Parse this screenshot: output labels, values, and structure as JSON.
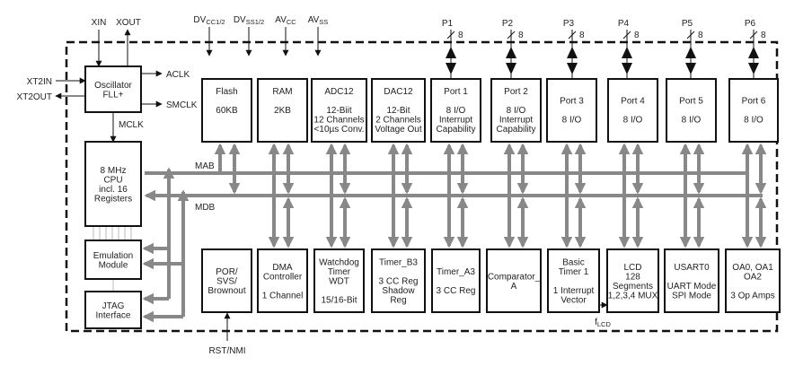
{
  "diagram": {
    "colors": {
      "bus": "#888888",
      "block_border": "#111111",
      "signal": "#111111"
    },
    "external_signals": {
      "xin": "XIN",
      "xout": "XOUT",
      "xt2in": "XT2IN",
      "xt2out": "XT2OUT",
      "aclk": "ACLK",
      "smclk": "SMCLK",
      "mclk": "MCLK",
      "rst_nmi": "RST/NMI",
      "flcd": {
        "main": "f",
        "sub": "LCD"
      }
    },
    "power": [
      {
        "main": "DV",
        "sub": "CC1/2"
      },
      {
        "main": "DV",
        "sub": "SS1/2"
      },
      {
        "main": "AV",
        "sub": "CC"
      },
      {
        "main": "AV",
        "sub": "SS"
      }
    ],
    "buses": {
      "mab": "MAB",
      "mdb": "MDB"
    },
    "ports": [
      {
        "name": "P1",
        "width": "8"
      },
      {
        "name": "P2",
        "width": "8"
      },
      {
        "name": "P3",
        "width": "8"
      },
      {
        "name": "P4",
        "width": "8"
      },
      {
        "name": "P5",
        "width": "8"
      },
      {
        "name": "P6",
        "width": "8"
      }
    ],
    "blocks": {
      "oscillator": [
        "Oscillator",
        "FLL+"
      ],
      "cpu": [
        "8 MHz",
        "CPU",
        "incl. 16",
        "Registers"
      ],
      "emulation": [
        "Emulation",
        "Module"
      ],
      "jtag": [
        "JTAG",
        "Interface"
      ],
      "flash": [
        "Flash",
        "",
        "60KB"
      ],
      "ram": [
        "RAM",
        "",
        "2KB"
      ],
      "adc12": [
        "ADC12",
        "",
        "12-Biit",
        "12 Channels",
        "<10µs Conv."
      ],
      "dac12": [
        "DAC12",
        "",
        "12-Bit",
        "2 Channels",
        "Voltage Out"
      ],
      "port1": [
        "Port 1",
        "",
        "8 I/O",
        "Interrupt",
        "Capability"
      ],
      "port2": [
        "Port 2",
        "",
        "8 I/O",
        "Interrupt",
        "Capability"
      ],
      "port3": [
        "Port 3",
        "",
        "8 I/O"
      ],
      "port4": [
        "Port 4",
        "",
        "8 I/O"
      ],
      "port5": [
        "Port 5",
        "",
        "8 I/O"
      ],
      "port6": [
        "Port 6",
        "",
        "8 I/O"
      ],
      "por": [
        "POR/",
        "SVS/",
        "Brownout"
      ],
      "dma": [
        "DMA",
        "Controller",
        "",
        "1 Channel"
      ],
      "wdt": [
        "Watchdog",
        "Timer",
        "WDT",
        "",
        "15/16-Bit"
      ],
      "timer_b3": [
        "Timer_B3",
        "",
        "3 CC Reg",
        "Shadow",
        "Reg"
      ],
      "timer_a3": [
        "Timer_A3",
        "",
        "3 CC Reg"
      ],
      "comparator": [
        "Comparator_",
        "A"
      ],
      "basic_timer": [
        "Basic",
        "Timer 1",
        "",
        "1 Interrupt",
        "Vector"
      ],
      "lcd": [
        "LCD",
        "128",
        "Segments",
        "1,2,3,4 MUX"
      ],
      "usart0": [
        "USART0",
        "",
        "UART Mode",
        "SPI Mode"
      ],
      "opamps": [
        "OA0, OA1",
        "OA2",
        "",
        "3 Op Amps"
      ]
    }
  }
}
